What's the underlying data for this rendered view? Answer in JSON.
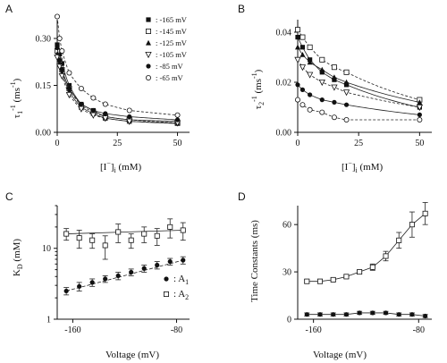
{
  "chart_data": [
    {
      "panel": "A",
      "type": "scatter",
      "xlabel": "[I⁻]i (mM)",
      "ylabel": "τ1⁻¹ (ms⁻¹)",
      "xlim": [
        0,
        55
      ],
      "ylim": [
        0,
        0.36
      ],
      "xticks": [
        "0",
        "25",
        "50"
      ],
      "yticks": [
        "0.00",
        "0.15",
        "0.30"
      ],
      "legend_position": "top-right",
      "series": [
        {
          "name": ": -165 mV",
          "marker": "filled-square",
          "x": [
            0,
            1,
            2,
            5,
            10,
            15,
            20,
            30,
            50
          ],
          "y": [
            0.28,
            0.25,
            0.22,
            0.15,
            0.09,
            0.07,
            0.05,
            0.04,
            0.035
          ]
        },
        {
          "name": ": -145 mV",
          "marker": "open-square",
          "x": [
            0,
            1,
            2,
            5,
            10,
            15,
            20,
            30,
            50
          ],
          "y": [
            0.26,
            0.23,
            0.2,
            0.14,
            0.085,
            0.065,
            0.05,
            0.04,
            0.03
          ]
        },
        {
          "name": ": -125 mV",
          "marker": "filled-triangle",
          "x": [
            0,
            1,
            2,
            5,
            10,
            15,
            20,
            30,
            50
          ],
          "y": [
            0.25,
            0.22,
            0.19,
            0.13,
            0.08,
            0.06,
            0.045,
            0.035,
            0.028
          ]
        },
        {
          "name": ": -105 mV",
          "marker": "open-triangle-down",
          "x": [
            0,
            1,
            2,
            5,
            10,
            15,
            20,
            30,
            50
          ],
          "y": [
            0.24,
            0.21,
            0.18,
            0.12,
            0.075,
            0.055,
            0.045,
            0.035,
            0.03
          ]
        },
        {
          "name": ": -85 mV",
          "marker": "filled-circle",
          "x": [
            0,
            1,
            2,
            5,
            10,
            15,
            20,
            30,
            50
          ],
          "y": [
            0.27,
            0.23,
            0.2,
            0.14,
            0.09,
            0.07,
            0.06,
            0.05,
            0.04
          ]
        },
        {
          "name": ": -65 mV",
          "marker": "open-circle",
          "x": [
            0,
            1,
            2,
            5,
            10,
            15,
            20,
            30,
            50
          ],
          "y": [
            0.37,
            0.3,
            0.26,
            0.19,
            0.14,
            0.11,
            0.09,
            0.07,
            0.055
          ]
        }
      ]
    },
    {
      "panel": "B",
      "type": "scatter",
      "xlabel": "[I⁻]i (mM)",
      "ylabel": "τ2⁻¹ (ms⁻¹)",
      "xlim": [
        0,
        55
      ],
      "ylim": [
        0,
        0.045
      ],
      "xticks": [
        "0",
        "25",
        "50"
      ],
      "yticks": [
        "0.00",
        "0.02",
        "0.04"
      ],
      "series": [
        {
          "marker": "filled-square",
          "x": [
            0,
            2,
            5,
            10,
            15,
            20,
            50
          ],
          "y": [
            0.038,
            0.034,
            0.029,
            0.024,
            0.021,
            0.019,
            0.01
          ]
        },
        {
          "marker": "open-square",
          "x": [
            0,
            2,
            5,
            10,
            15,
            20,
            50
          ],
          "y": [
            0.041,
            0.038,
            0.034,
            0.029,
            0.026,
            0.024,
            0.013
          ]
        },
        {
          "marker": "filled-triangle",
          "x": [
            0,
            2,
            5,
            10,
            15,
            20,
            50
          ],
          "y": [
            0.034,
            0.031,
            0.028,
            0.025,
            0.022,
            0.02,
            0.012
          ]
        },
        {
          "marker": "open-triangle-down",
          "x": [
            0,
            2,
            5,
            10,
            15,
            20,
            50
          ],
          "y": [
            0.029,
            0.026,
            0.023,
            0.02,
            0.018,
            0.016,
            0.01
          ]
        },
        {
          "marker": "filled-circle",
          "x": [
            0,
            2,
            5,
            10,
            15,
            20,
            50
          ],
          "y": [
            0.019,
            0.017,
            0.015,
            0.013,
            0.012,
            0.011,
            0.007
          ]
        },
        {
          "marker": "open-circle",
          "x": [
            0,
            2,
            5,
            10,
            15,
            20,
            50
          ],
          "y": [
            0.013,
            0.011,
            0.009,
            0.008,
            0.006,
            0.005,
            0.005
          ]
        }
      ]
    },
    {
      "panel": "C",
      "type": "scatter",
      "xlabel": "Voltage (mV)",
      "ylabel": "KD (mM)",
      "yscale": "log",
      "xlim": [
        -172,
        -70
      ],
      "ylim": [
        1,
        40
      ],
      "xticks": [
        "-160",
        "-80"
      ],
      "yticks": [
        "1",
        "10"
      ],
      "legend_position": "bottom-right",
      "series": [
        {
          "name": ": A1",
          "marker": "filled-circle",
          "x": [
            -165,
            -155,
            -145,
            -135,
            -125,
            -115,
            -105,
            -95,
            -85,
            -75
          ],
          "y": [
            2.5,
            2.9,
            3.3,
            3.7,
            4.1,
            4.6,
            5.2,
            5.8,
            6.5,
            6.8
          ],
          "err": [
            0.3,
            0.4,
            0.4,
            0.4,
            0.5,
            0.5,
            0.6,
            0.7,
            0.7,
            0.8
          ]
        },
        {
          "name": ": A2",
          "marker": "open-square",
          "x": [
            -165,
            -155,
            -145,
            -135,
            -125,
            -115,
            -105,
            -95,
            -85,
            -75
          ],
          "y": [
            16,
            14,
            13,
            11,
            17,
            13,
            16,
            15,
            20,
            18
          ],
          "err": [
            3,
            4,
            3,
            4,
            5,
            3,
            4,
            4,
            6,
            5
          ]
        }
      ]
    },
    {
      "panel": "D",
      "type": "line",
      "xlabel": "Voltage (mV)",
      "ylabel": "Time Constants (ms)",
      "xlim": [
        -172,
        -70
      ],
      "ylim": [
        0,
        72
      ],
      "xticks": [
        "-160",
        "-80"
      ],
      "yticks": [
        "0",
        "30",
        "60"
      ],
      "series": [
        {
          "marker": "filled-circle",
          "x": [
            -165,
            -155,
            -145,
            -135,
            -125,
            -115,
            -105,
            -95,
            -85,
            -75
          ],
          "y": [
            3,
            3,
            3,
            3,
            4,
            4,
            4,
            3,
            3,
            2
          ],
          "err": [
            1,
            1,
            1,
            1,
            1,
            1,
            1,
            1,
            1,
            1
          ]
        },
        {
          "marker": "open-square",
          "x": [
            -165,
            -155,
            -145,
            -135,
            -125,
            -115,
            -105,
            -95,
            -85,
            -75
          ],
          "y": [
            24,
            24,
            25,
            27,
            30,
            33,
            40,
            50,
            60,
            67
          ],
          "err": [
            1,
            1,
            1,
            1,
            1,
            2,
            3,
            5,
            8,
            7
          ]
        }
      ]
    }
  ]
}
